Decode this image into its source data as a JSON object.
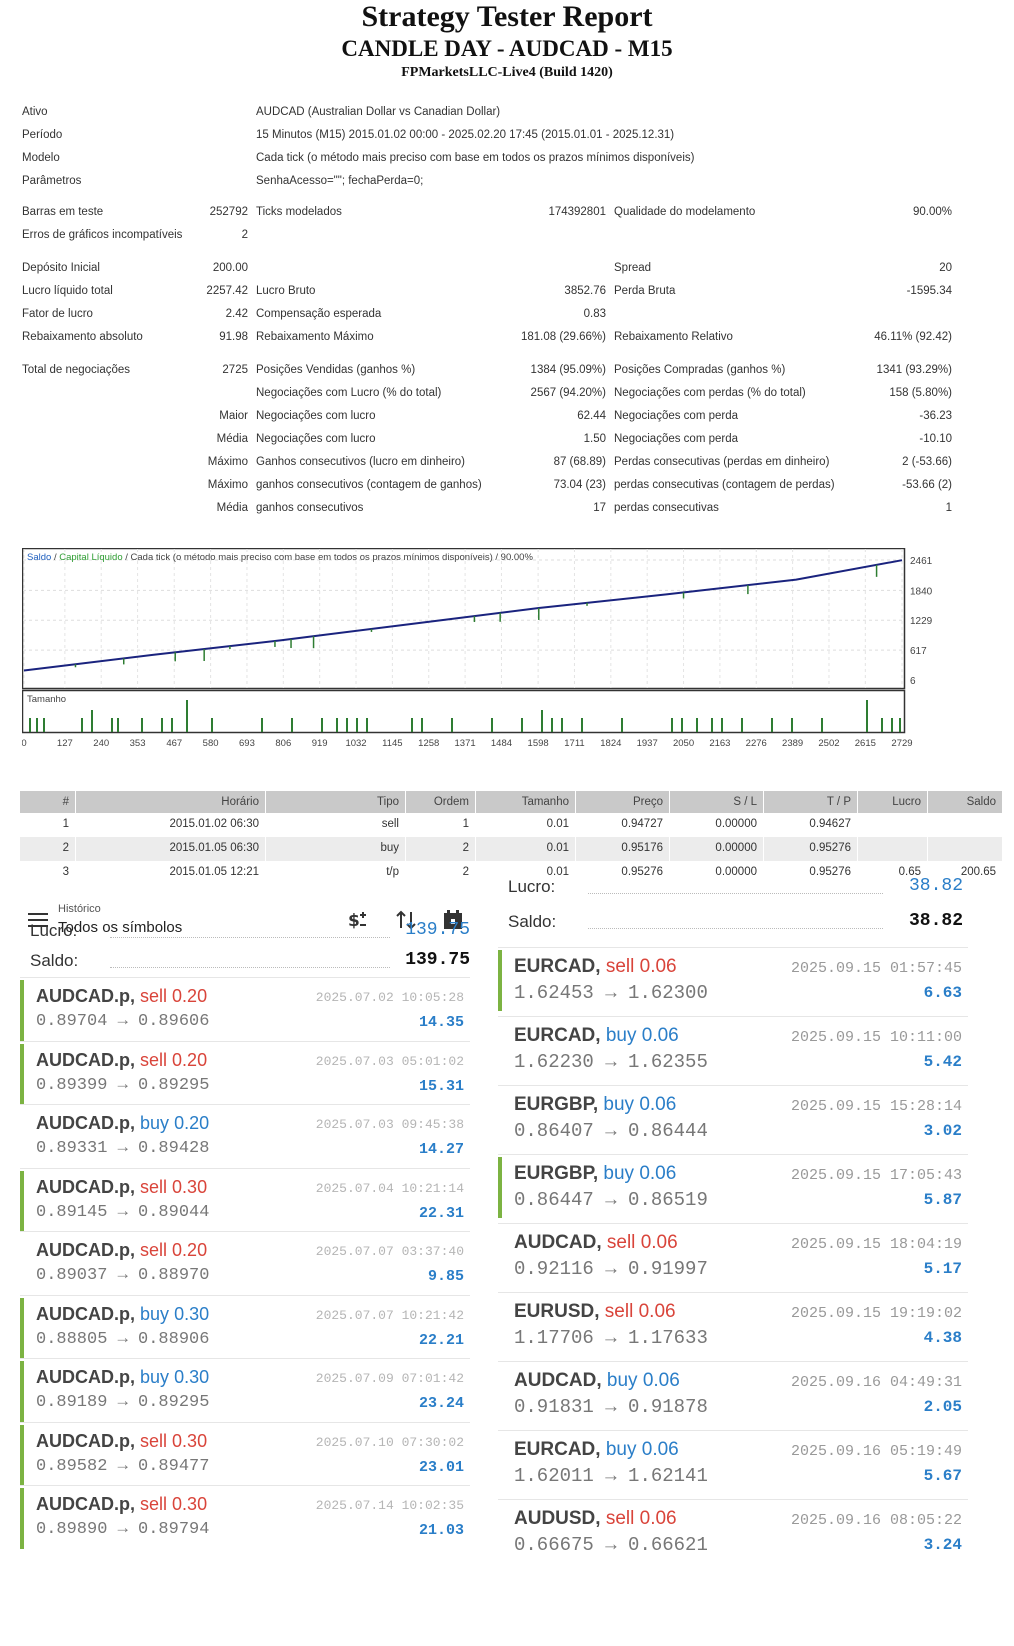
{
  "report": {
    "title": "Strategy Tester Report",
    "subtitle": "CANDLE DAY - AUDCAD - M15",
    "server": "FPMarketsLLC-Live4 (Build 1420)"
  },
  "settings": [
    {
      "label": "Ativo",
      "value": "AUDCAD (Australian Dollar vs Canadian Dollar)"
    },
    {
      "label": "Período",
      "value": "15 Minutos (M15) 2015.01.02 00:00 - 2025.02.20 17:45 (2015.01.01 - 2025.12.31)"
    },
    {
      "label": "Modelo",
      "value": "Cada tick (o método mais preciso com base em todos os prazos mínimos disponíveis)"
    },
    {
      "label": "Parâmetros",
      "value": "SenhaAcesso=\"\"; fechaPerda=0;"
    }
  ],
  "bars_row": {
    "bars_label": "Barras em teste",
    "bars_value": "252792",
    "ticks_label": "Ticks modelados",
    "ticks_value": "174392801",
    "quality_label": "Qualidade do modelamento",
    "quality_value": "90.00%"
  },
  "errors_row": {
    "label": "Erros de gráficos incompatíveis",
    "value": "2"
  },
  "results": [
    {
      "l1": "Depósito Inicial",
      "v1": "200.00",
      "l2": "",
      "v2": "",
      "l3": "Spread",
      "v3": "20"
    },
    {
      "l1": "Lucro líquido total",
      "v1": "2257.42",
      "l2": "Lucro Bruto",
      "v2": "3852.76",
      "l3": "Perda Bruta",
      "v3": "-1595.34"
    },
    {
      "l1": "Fator de lucro",
      "v1": "2.42",
      "l2": "Compensação esperada",
      "v2": "0.83",
      "l3": "",
      "v3": ""
    },
    {
      "l1": "Rebaixamento absoluto",
      "v1": "91.98",
      "l2": "Rebaixamento Máximo",
      "v2": "181.08 (29.66%)",
      "l3": "Rebaixamento Relativo",
      "v3": "46.11% (92.42)"
    }
  ],
  "trades_stats": [
    {
      "l1": "Total de negociações",
      "v1": "2725",
      "l2": "Posições Vendidas (ganhos %)",
      "v2": "1384 (95.09%)",
      "l3": "Posições Compradas (ganhos %)",
      "v3": "1341 (93.29%)"
    },
    {
      "l1": "",
      "v1": "",
      "l2": "Negociações com Lucro (% do total)",
      "v2": "2567 (94.20%)",
      "l3": "Negociações com perdas (% do total)",
      "v3": "158 (5.80%)"
    },
    {
      "l1": "",
      "v1": "Maior",
      "l2": "Negociações com lucro",
      "v2": "62.44",
      "l3": "Negociações com perda",
      "v3": "-36.23"
    },
    {
      "l1": "",
      "v1": "Média",
      "l2": "Negociações com lucro",
      "v2": "1.50",
      "l3": "Negociações com perda",
      "v3": "-10.10"
    },
    {
      "l1": "",
      "v1": "Máximo",
      "l2": "Ganhos consecutivos (lucro em dinheiro)",
      "v2": "87 (68.89)",
      "l3": "Perdas consecutivas (perdas em dinheiro)",
      "v3": "2 (-53.66)"
    },
    {
      "l1": "",
      "v1": "Máximo",
      "l2": "ganhos consecutivos (contagem de ganhos)",
      "v2": "73.04 (23)",
      "l3": "perdas consecutivas (contagem de perdas)",
      "v3": "-53.66 (2)"
    },
    {
      "l1": "",
      "v1": "Média",
      "l2": "ganhos consecutivos",
      "v2": "17",
      "l3": "perdas consecutivas",
      "v3": "1"
    }
  ],
  "chart_data": {
    "type": "line",
    "legend": {
      "balance": "Saldo",
      "equity": "Capital Líquido",
      "desc": " / Cada tick (o método mais preciso com base em todos os prazos mínimos disponíveis) / 90.00%"
    },
    "x_ticks": [
      "0",
      "127",
      "240",
      "353",
      "467",
      "580",
      "693",
      "806",
      "919",
      "1032",
      "1145",
      "1258",
      "1371",
      "1484",
      "1598",
      "1711",
      "1824",
      "1937",
      "2050",
      "2163",
      "2276",
      "2389",
      "2502",
      "2615",
      "2729"
    ],
    "y_ticks": [
      "2461",
      "1840",
      "1229",
      "617",
      "6"
    ],
    "xlim": [
      0,
      2729
    ],
    "ylim": [
      6,
      2461
    ],
    "series": [
      {
        "name": "Saldo",
        "x": [
          0,
          400,
          800,
          1200,
          1600,
          2000,
          2400,
          2729
        ],
        "values": [
          200,
          520,
          820,
          1150,
          1480,
          1760,
          2060,
          2457
        ]
      }
    ],
    "volume_label": "Tamanho",
    "balance_color": "#1a237e",
    "equity_color": "#2e7d32",
    "volume_color": "#2e7d32"
  },
  "deals_table": {
    "headers": [
      "#",
      "Horário",
      "Tipo",
      "Ordem",
      "Tamanho",
      "Preço",
      "S / L",
      "T / P",
      "Lucro",
      "Saldo"
    ],
    "rows": [
      [
        "1",
        "2015.01.02 06:30",
        "sell",
        "1",
        "0.01",
        "0.94727",
        "0.00000",
        "0.94627",
        "",
        ""
      ],
      [
        "2",
        "2015.01.05 06:30",
        "buy",
        "2",
        "0.01",
        "0.95176",
        "0.00000",
        "0.95276",
        "",
        ""
      ],
      [
        "3",
        "2015.01.05 12:21",
        "t/p",
        "2",
        "0.01",
        "0.95276",
        "0.00000",
        "0.95276",
        "0.65",
        "200.65"
      ]
    ]
  },
  "left_history": {
    "header_small": "Histórico",
    "header_main": "Todos os símbolos",
    "profit_label": "Lucro:",
    "profit_value": "139.75",
    "balance_label": "Saldo:",
    "balance_value": "139.75",
    "trades": [
      {
        "sym": "AUDCAD.p,",
        "side": "sell",
        "lot": "0.20",
        "from": "0.89704",
        "to": "0.89606",
        "time": "2025.07.02 10:05:28",
        "profit": "14.35",
        "bar": true
      },
      {
        "sym": "AUDCAD.p,",
        "side": "sell",
        "lot": "0.20",
        "from": "0.89399",
        "to": "0.89295",
        "time": "2025.07.03 05:01:02",
        "profit": "15.31",
        "bar": true
      },
      {
        "sym": "AUDCAD.p,",
        "side": "buy",
        "lot": "0.20",
        "from": "0.89331",
        "to": "0.89428",
        "time": "2025.07.03 09:45:38",
        "profit": "14.27",
        "bar": false
      },
      {
        "sym": "AUDCAD.p,",
        "side": "sell",
        "lot": "0.30",
        "from": "0.89145",
        "to": "0.89044",
        "time": "2025.07.04 10:21:14",
        "profit": "22.31",
        "bar": true
      },
      {
        "sym": "AUDCAD.p,",
        "side": "sell",
        "lot": "0.20",
        "from": "0.89037",
        "to": "0.88970",
        "time": "2025.07.07 03:37:40",
        "profit": "9.85",
        "bar": false
      },
      {
        "sym": "AUDCAD.p,",
        "side": "buy",
        "lot": "0.30",
        "from": "0.88805",
        "to": "0.88906",
        "time": "2025.07.07 10:21:42",
        "profit": "22.21",
        "bar": true
      },
      {
        "sym": "AUDCAD.p,",
        "side": "buy",
        "lot": "0.30",
        "from": "0.89189",
        "to": "0.89295",
        "time": "2025.07.09 07:01:42",
        "profit": "23.24",
        "bar": true
      },
      {
        "sym": "AUDCAD.p,",
        "side": "sell",
        "lot": "0.30",
        "from": "0.89582",
        "to": "0.89477",
        "time": "2025.07.10 07:30:02",
        "profit": "23.01",
        "bar": true
      },
      {
        "sym": "AUDCAD.p,",
        "side": "sell",
        "lot": "0.30",
        "from": "0.89890",
        "to": "0.89794",
        "time": "2025.07.14 10:02:35",
        "profit": "21.03",
        "bar": true
      }
    ]
  },
  "right_history": {
    "profit_label": "Lucro:",
    "profit_value": "38.82",
    "balance_label": "Saldo:",
    "balance_value": "38.82",
    "trades": [
      {
        "sym": "EURCAD,",
        "side": "sell",
        "lot": "0.06",
        "from": "1.62453",
        "to": "1.62300",
        "time": "2025.09.15 01:57:45",
        "profit": "6.63",
        "bar": true
      },
      {
        "sym": "EURCAD,",
        "side": "buy",
        "lot": "0.06",
        "from": "1.62230",
        "to": "1.62355",
        "time": "2025.09.15 10:11:00",
        "profit": "5.42",
        "bar": false
      },
      {
        "sym": "EURGBP,",
        "side": "buy",
        "lot": "0.06",
        "from": "0.86407",
        "to": "0.86444",
        "time": "2025.09.15 15:28:14",
        "profit": "3.02",
        "bar": false
      },
      {
        "sym": "EURGBP,",
        "side": "buy",
        "lot": "0.06",
        "from": "0.86447",
        "to": "0.86519",
        "time": "2025.09.15 17:05:43",
        "profit": "5.87",
        "bar": true
      },
      {
        "sym": "AUDCAD,",
        "side": "sell",
        "lot": "0.06",
        "from": "0.92116",
        "to": "0.91997",
        "time": "2025.09.15 18:04:19",
        "profit": "5.17",
        "bar": false
      },
      {
        "sym": "EURUSD,",
        "side": "sell",
        "lot": "0.06",
        "from": "1.17706",
        "to": "1.17633",
        "time": "2025.09.15 19:19:02",
        "profit": "4.38",
        "bar": false
      },
      {
        "sym": "AUDCAD,",
        "side": "buy",
        "lot": "0.06",
        "from": "0.91831",
        "to": "0.91878",
        "time": "2025.09.16 04:49:31",
        "profit": "2.05",
        "bar": false
      },
      {
        "sym": "EURCAD,",
        "side": "buy",
        "lot": "0.06",
        "from": "1.62011",
        "to": "1.62141",
        "time": "2025.09.16 05:19:49",
        "profit": "5.67",
        "bar": false
      },
      {
        "sym": "AUDUSD,",
        "side": "sell",
        "lot": "0.06",
        "from": "0.66675",
        "to": "0.66621",
        "time": "2025.09.16 08:05:22",
        "profit": "3.24",
        "bar": false
      }
    ]
  }
}
